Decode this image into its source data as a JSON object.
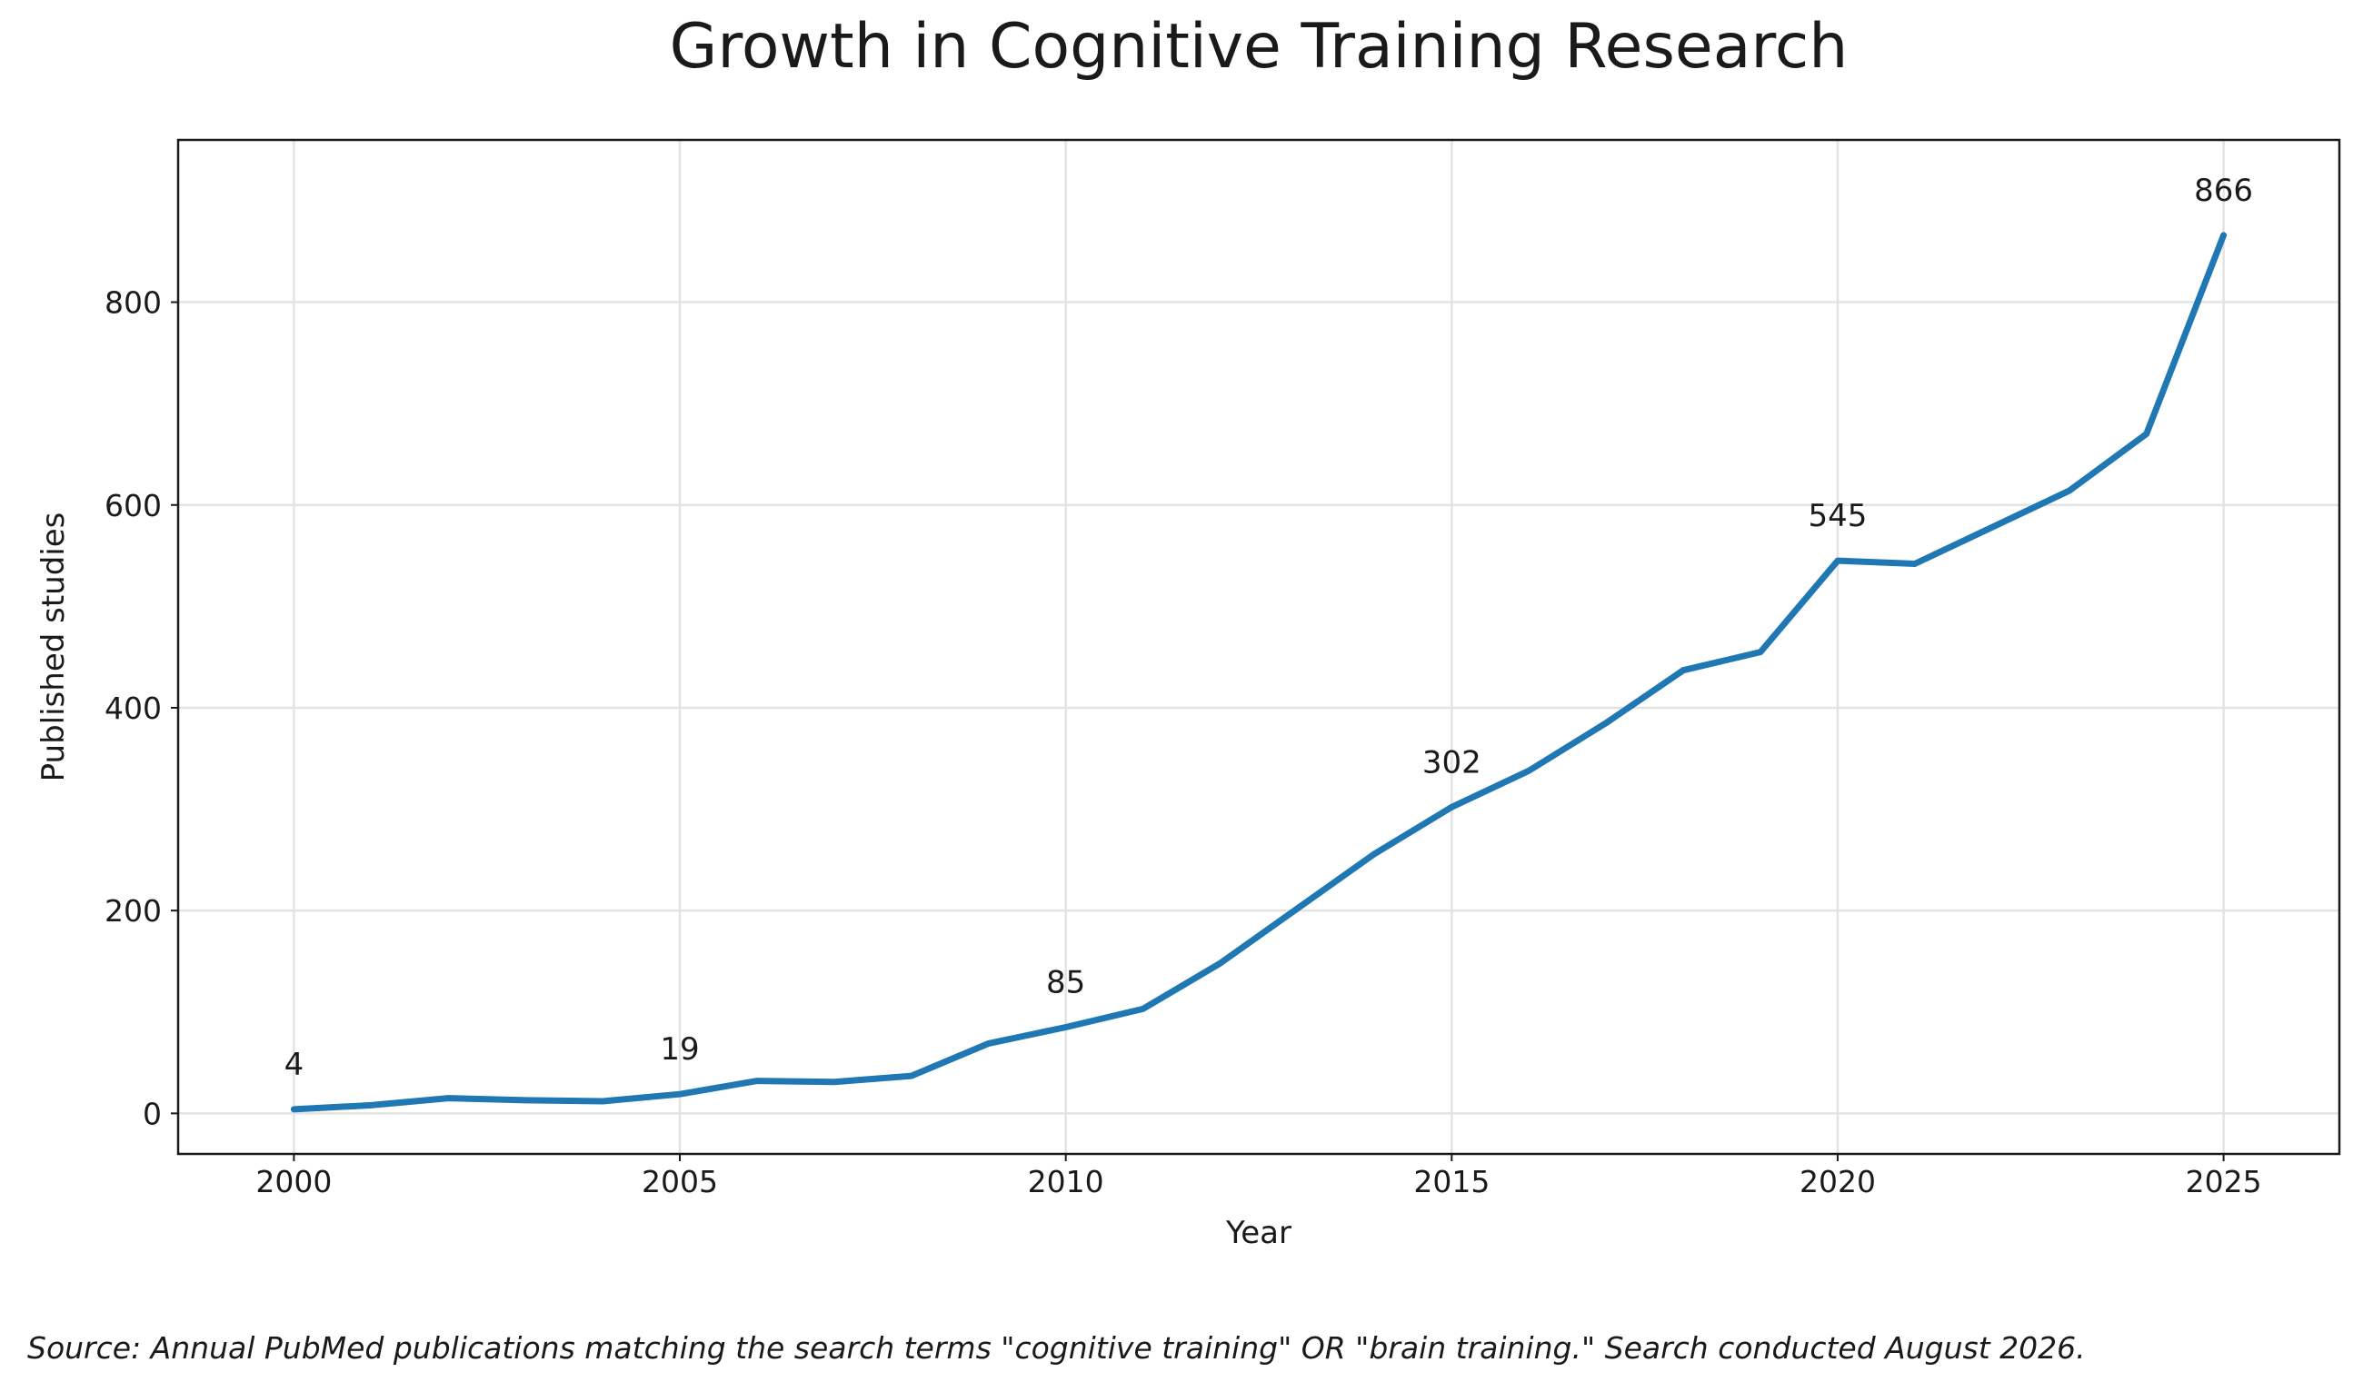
{
  "chart_data": {
    "type": "line",
    "title": "Growth in Cognitive Training Research",
    "xlabel": "Year",
    "ylabel": "Published studies",
    "source_note": "Source: Annual PubMed publications matching the search terms \"cognitive training\" OR \"brain training.\" Search conducted August 2026.",
    "xlim": [
      1998.5,
      2026.5
    ],
    "ylim": [
      -40,
      960
    ],
    "xticks": [
      2000,
      2005,
      2010,
      2015,
      2020,
      2025
    ],
    "xtick_labels": [
      "2000",
      "2005",
      "2010",
      "2015",
      "2020",
      "2025"
    ],
    "yticks": [
      0,
      200,
      400,
      600,
      800
    ],
    "ytick_labels": [
      "0",
      "200",
      "400",
      "600",
      "800"
    ],
    "grid": true,
    "legend": "none",
    "line_color": "#1f77b4",
    "series": [
      {
        "x": [
          2000,
          2001,
          2002,
          2003,
          2004,
          2005,
          2006,
          2007,
          2008,
          2009,
          2010,
          2011,
          2012,
          2013,
          2014,
          2015,
          2016,
          2017,
          2018,
          2019,
          2020,
          2021,
          2022,
          2023,
          2024,
          2025
        ],
        "y": [
          4,
          8,
          15,
          13,
          12,
          19,
          32,
          31,
          37,
          69,
          85,
          103,
          148,
          202,
          256,
          302,
          338,
          385,
          437,
          455,
          545,
          542,
          578,
          614,
          670,
          866
        ]
      }
    ],
    "annotations": [
      {
        "x": 2000,
        "y": 4,
        "text": "4"
      },
      {
        "x": 2005,
        "y": 19,
        "text": "19"
      },
      {
        "x": 2010,
        "y": 85,
        "text": "85"
      },
      {
        "x": 2015,
        "y": 302,
        "text": "302"
      },
      {
        "x": 2020,
        "y": 545,
        "text": "545"
      },
      {
        "x": 2025,
        "y": 866,
        "text": "866"
      }
    ]
  }
}
